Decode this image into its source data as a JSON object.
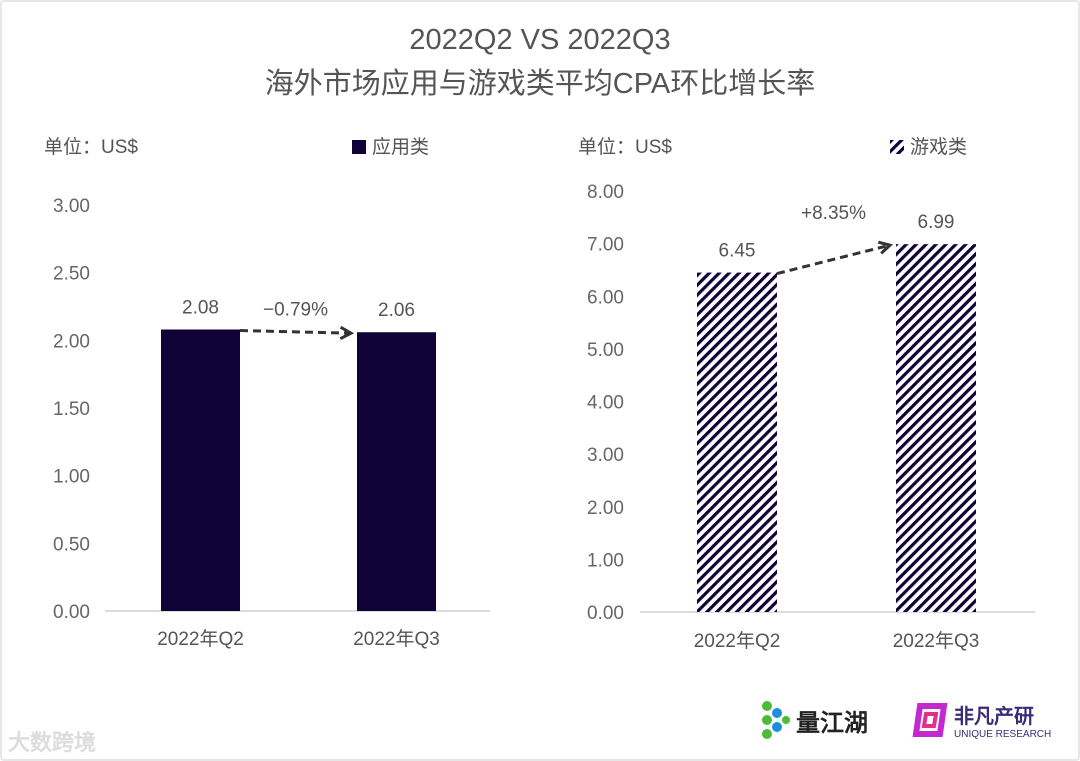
{
  "title_line1": "2022Q2 VS 2022Q3",
  "title_line2": "海外市场应用与游戏类平均CPA环比增长率",
  "chart_data": [
    {
      "type": "bar",
      "unit_label": "单位：US$",
      "legend": "应用类",
      "legend_placement": "top",
      "categories": [
        "2022年Q2",
        "2022年Q3"
      ],
      "values": [
        2.08,
        2.06
      ],
      "data_labels": [
        "2.08",
        "2.06"
      ],
      "yticks": [
        "0.00",
        "0.50",
        "1.00",
        "1.50",
        "2.00",
        "2.50",
        "3.00"
      ],
      "ylim": [
        0,
        3
      ],
      "color": "#0e0237",
      "fill": "solid",
      "change_annotation": "−0.79%",
      "grid": false
    },
    {
      "type": "bar",
      "unit_label": "单位：US$",
      "legend": "游戏类",
      "legend_placement": "top",
      "categories": [
        "2022年Q2",
        "2022年Q3"
      ],
      "values": [
        6.45,
        6.99
      ],
      "data_labels": [
        "6.45",
        "6.99"
      ],
      "yticks": [
        "0.00",
        "1.00",
        "2.00",
        "3.00",
        "4.00",
        "5.00",
        "6.00",
        "7.00",
        "8.00"
      ],
      "ylim": [
        0,
        8
      ],
      "color": "#0e0237",
      "fill": "hatched",
      "change_annotation": "+8.35%",
      "grid": false
    }
  ],
  "logos": {
    "lianghu": "量江湖",
    "feifan": "非凡产研",
    "feifan_en": "UNIQUE RESEARCH",
    "watermark": "大数跨境"
  }
}
